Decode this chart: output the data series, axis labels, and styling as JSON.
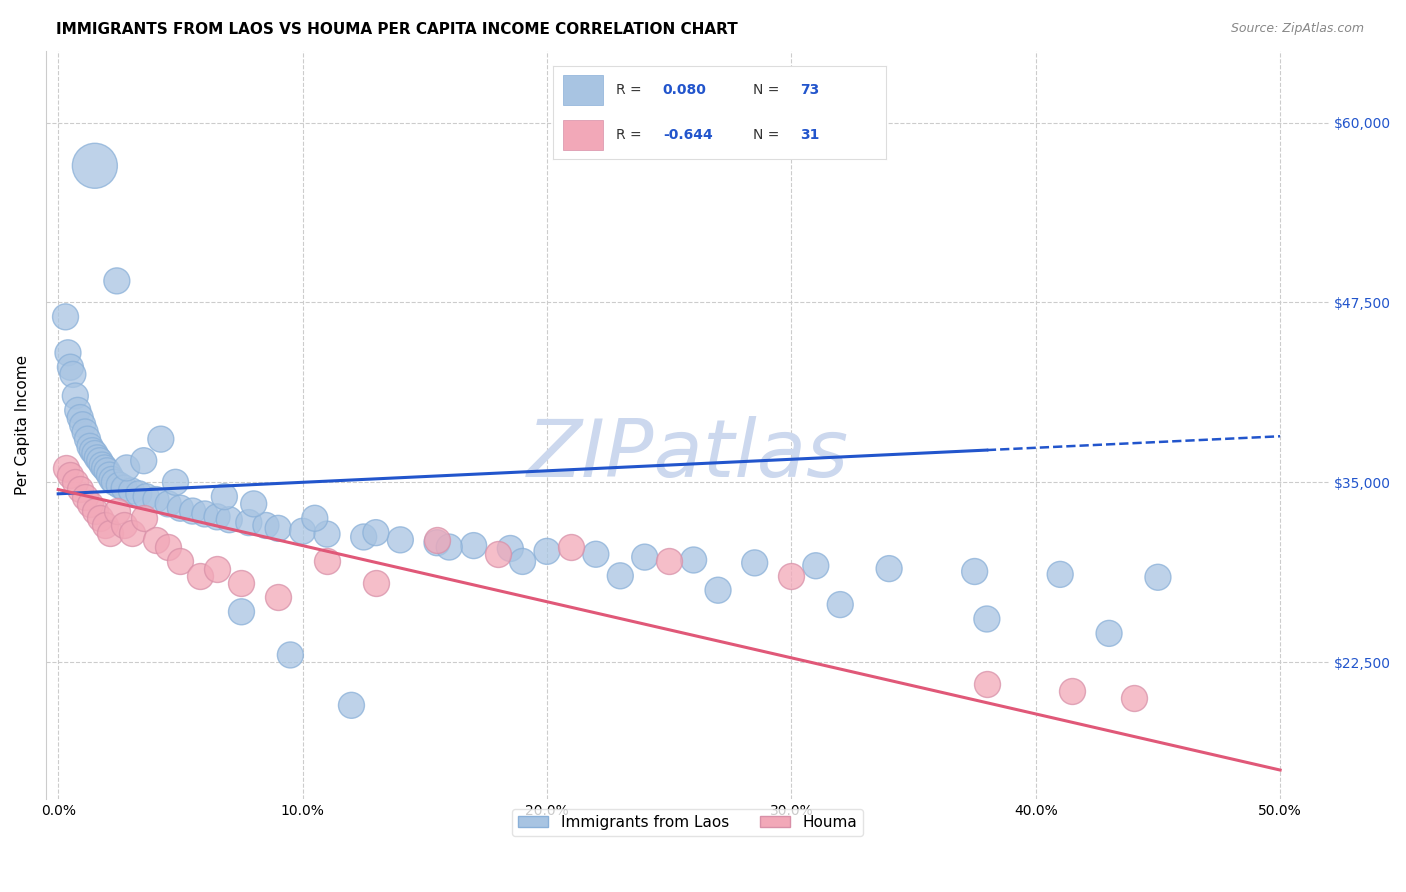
{
  "title": "IMMIGRANTS FROM LAOS VS HOUMA PER CAPITA INCOME CORRELATION CHART",
  "source": "Source: ZipAtlas.com",
  "xlabel_ticks": [
    "0.0%",
    "10.0%",
    "20.0%",
    "30.0%",
    "40.0%",
    "50.0%"
  ],
  "xlabel_vals": [
    0.0,
    10.0,
    20.0,
    30.0,
    40.0,
    50.0
  ],
  "ylabel_vals": [
    22500,
    35000,
    47500,
    60000
  ],
  "ylabel_labels": [
    "$22,500",
    "$35,000",
    "$47,500",
    "$60,000"
  ],
  "ylim": [
    13000,
    65000
  ],
  "xlim": [
    -0.5,
    52.0
  ],
  "blue_color": "#a8c4e2",
  "pink_color": "#f2a8b8",
  "blue_line_color": "#2255cc",
  "pink_line_color": "#e05878",
  "watermark": "ZIPatlas",
  "watermark_color": "#ccd8ee",
  "legend_label_blue": "Immigrants from Laos",
  "legend_label_pink": "Houma",
  "blue_scatter_x": [
    0.3,
    0.4,
    0.5,
    0.6,
    0.7,
    0.8,
    0.9,
    1.0,
    1.1,
    1.2,
    1.3,
    1.4,
    1.5,
    1.6,
    1.7,
    1.8,
    1.9,
    2.0,
    2.1,
    2.2,
    2.3,
    2.5,
    2.7,
    3.0,
    3.3,
    3.6,
    4.0,
    4.5,
    5.0,
    5.5,
    6.0,
    6.5,
    7.0,
    7.8,
    8.5,
    9.0,
    10.0,
    11.0,
    12.5,
    14.0,
    15.5,
    17.0,
    18.5,
    20.0,
    22.0,
    24.0,
    26.0,
    28.5,
    31.0,
    34.0,
    37.5,
    41.0,
    45.0,
    2.8,
    3.5,
    4.8,
    6.8,
    8.0,
    10.5,
    13.0,
    16.0,
    19.0,
    23.0,
    27.0,
    32.0,
    38.0,
    43.0,
    1.5,
    2.4,
    4.2,
    7.5,
    9.5,
    12.0
  ],
  "blue_scatter_y": [
    46500,
    44000,
    43000,
    42500,
    41000,
    40000,
    39500,
    39000,
    38500,
    38000,
    37500,
    37200,
    37000,
    36700,
    36500,
    36200,
    36000,
    35800,
    35500,
    35200,
    35000,
    34800,
    34600,
    34400,
    34200,
    34000,
    33800,
    33500,
    33200,
    33000,
    32800,
    32600,
    32400,
    32200,
    32000,
    31800,
    31600,
    31400,
    31200,
    31000,
    30800,
    30600,
    30400,
    30200,
    30000,
    29800,
    29600,
    29400,
    29200,
    29000,
    28800,
    28600,
    28400,
    36000,
    36500,
    35000,
    34000,
    33500,
    32500,
    31500,
    30500,
    29500,
    28500,
    27500,
    26500,
    25500,
    24500,
    57000,
    49000,
    38000,
    26000,
    23000,
    19500
  ],
  "blue_scatter_size_big": [
    0,
    0,
    0,
    0,
    0,
    0,
    0,
    0,
    0,
    0,
    0,
    0,
    0,
    0,
    0,
    0,
    0,
    0,
    0,
    0,
    0,
    0,
    0,
    0,
    0,
    0,
    0,
    0,
    0,
    0,
    0,
    0,
    0,
    0,
    0,
    0,
    0,
    0,
    0,
    0,
    0,
    0,
    0,
    0,
    0,
    0,
    0,
    0,
    0,
    0,
    0,
    0,
    0,
    0,
    0,
    0,
    0,
    0,
    0,
    0,
    0,
    0,
    0,
    0,
    0,
    0,
    0,
    1,
    0,
    0,
    0,
    0,
    0
  ],
  "pink_scatter_x": [
    0.3,
    0.5,
    0.7,
    0.9,
    1.1,
    1.3,
    1.5,
    1.7,
    1.9,
    2.1,
    2.4,
    2.7,
    3.0,
    3.5,
    4.0,
    4.5,
    5.0,
    5.8,
    6.5,
    7.5,
    9.0,
    11.0,
    13.0,
    15.5,
    18.0,
    21.0,
    25.0,
    30.0,
    38.0,
    41.5,
    44.0
  ],
  "pink_scatter_y": [
    36000,
    35500,
    35000,
    34500,
    34000,
    33500,
    33000,
    32500,
    32000,
    31500,
    33000,
    32000,
    31500,
    32500,
    31000,
    30500,
    29500,
    28500,
    29000,
    28000,
    27000,
    29500,
    28000,
    31000,
    30000,
    30500,
    29500,
    28500,
    21000,
    20500,
    20000
  ],
  "blue_trend_x0": 0.0,
  "blue_trend_y0": 34200,
  "blue_trend_x1": 50.0,
  "blue_trend_y1": 38200,
  "blue_solid_end": 38.0,
  "pink_trend_x0": 0.0,
  "pink_trend_y0": 34500,
  "pink_trend_x1": 50.0,
  "pink_trend_y1": 15000,
  "grid_color": "#cccccc",
  "bg_color": "#ffffff",
  "title_fontsize": 11,
  "axis_tick_fontsize": 10,
  "ylabel": "Per Capita Income"
}
